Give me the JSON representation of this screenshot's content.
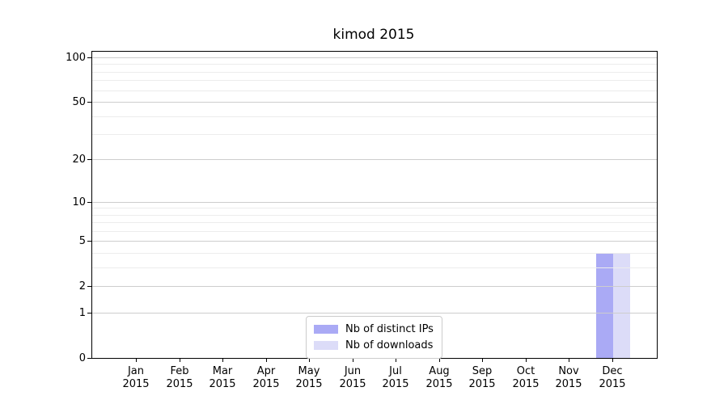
{
  "title": "kimod 2015",
  "chart_data": {
    "type": "bar",
    "title": "kimod 2015",
    "categories": [
      "Jan",
      "Feb",
      "Mar",
      "Apr",
      "May",
      "Jun",
      "Jul",
      "Aug",
      "Sep",
      "Oct",
      "Nov",
      "Dec"
    ],
    "x_year_label": "2015",
    "series": [
      {
        "name": "Nb of distinct IPs",
        "color": "#aaaaf5",
        "values": [
          0,
          0,
          0,
          0,
          0,
          0,
          0,
          0,
          0,
          0,
          0,
          4
        ]
      },
      {
        "name": "Nb of downloads",
        "color": "#dcdcf8",
        "values": [
          0,
          0,
          0,
          0,
          0,
          0,
          0,
          0,
          0,
          0,
          0,
          4
        ]
      }
    ],
    "y_axis": {
      "scale": "log10(1+v)",
      "ticks": [
        0,
        1,
        2,
        5,
        10,
        20,
        50,
        100
      ],
      "minor_ticks": [
        3,
        4,
        6,
        7,
        8,
        9,
        30,
        40,
        60,
        70,
        80,
        90
      ],
      "max": 110
    },
    "grid": "horizontal",
    "legend_position": "inside-bottom-center",
    "colors": {
      "major_grid": "#cdcdcd",
      "minor_grid": "#ececec",
      "axis": "#000000",
      "background": "#ffffff"
    }
  }
}
